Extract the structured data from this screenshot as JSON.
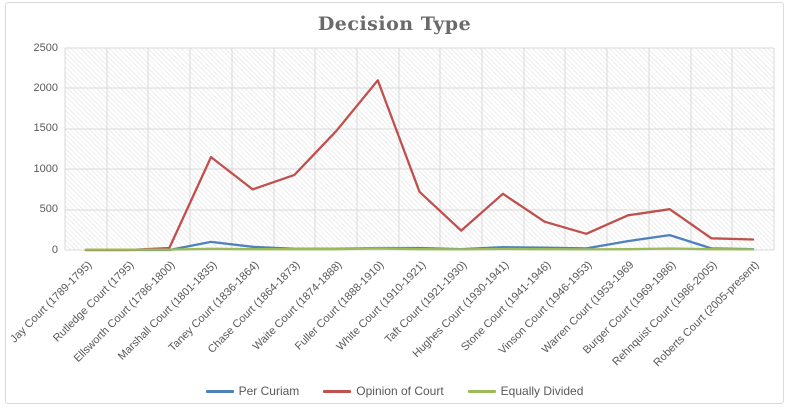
{
  "title": "Decision Type",
  "colors": {
    "title_text": "#6a6a6b",
    "axis_text": "#595959",
    "gridline": "#d9d9d9",
    "chart_border": "#d9d9d9",
    "background": "#ffffff",
    "per_curiam": "#4F81BD",
    "opinion_of_court": "#C0504D",
    "equally_divided": "#9BBB59"
  },
  "chart_data": {
    "type": "line",
    "title": "Decision Type",
    "categories": [
      "Jay Court (1789-1795)",
      "Rutledge Court (1795)",
      "Ellsworth Court (1786-1800)",
      "Marshall Court (1801-1835)",
      "Taney Court (1836-1864)",
      "Chase Court (1864-1873)",
      "Waite Court (1874-1888)",
      "Fuller Court (1888-1910)",
      "White Court (1910-1921)",
      "Taft Court (1921-1930)",
      "Hughes Court (1930-1941)",
      "Stone Court (1941-1946)",
      "Vinson Court (1946-1953)",
      "Warren Court (1953-1969",
      "Burger Court (1969-1986)",
      "Rehnquist Court (1986-2005)",
      "Roberts Court (2005-present)"
    ],
    "series": [
      {
        "name": "Per Curiam",
        "color": "#4F81BD",
        "values": [
          0,
          0,
          0,
          100,
          40,
          15,
          15,
          25,
          25,
          10,
          35,
          30,
          20,
          110,
          185,
          20,
          10
        ]
      },
      {
        "name": "Opinion of Court",
        "color": "#C0504D",
        "values": [
          0,
          0,
          25,
          1150,
          750,
          930,
          1470,
          2100,
          720,
          240,
          695,
          350,
          200,
          430,
          505,
          145,
          130
        ]
      },
      {
        "name": "Equally Divided",
        "color": "#9BBB59",
        "values": [
          5,
          5,
          5,
          15,
          10,
          10,
          10,
          20,
          10,
          8,
          12,
          10,
          8,
          10,
          18,
          10,
          8
        ]
      }
    ],
    "xlabel": "",
    "ylabel": "",
    "ylim": [
      0,
      2500
    ],
    "yticks": [
      0,
      500,
      1000,
      1500,
      2000,
      2500
    ],
    "grid": true,
    "plot_background": "diagonal-hatch",
    "legend_position": "bottom"
  }
}
